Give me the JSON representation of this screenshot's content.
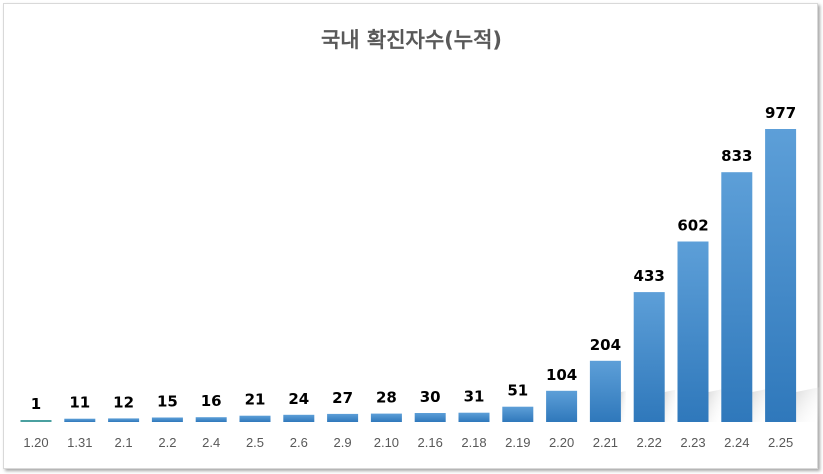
{
  "chart_data": {
    "type": "bar",
    "title": "국내 확진자수(누적)",
    "categories": [
      "1.20",
      "1.31",
      "2.1",
      "2.2",
      "2.4",
      "2.5",
      "2.6",
      "2.9",
      "2.10",
      "2.16",
      "2.18",
      "2.19",
      "2.20",
      "2.21",
      "2.22",
      "2.23",
      "2.24",
      "2.25"
    ],
    "values": [
      1,
      11,
      12,
      15,
      16,
      21,
      24,
      27,
      28,
      30,
      31,
      51,
      104,
      204,
      433,
      602,
      833,
      977
    ],
    "xlabel": "",
    "ylabel": "",
    "ylim": [
      0,
      977
    ],
    "grid": false,
    "legend": "none",
    "data_labels": true,
    "colors": {
      "bar_top": "#5b9bd5",
      "bar_bottom": "#2e75b6",
      "first_bar": "#4aa0a0"
    }
  }
}
